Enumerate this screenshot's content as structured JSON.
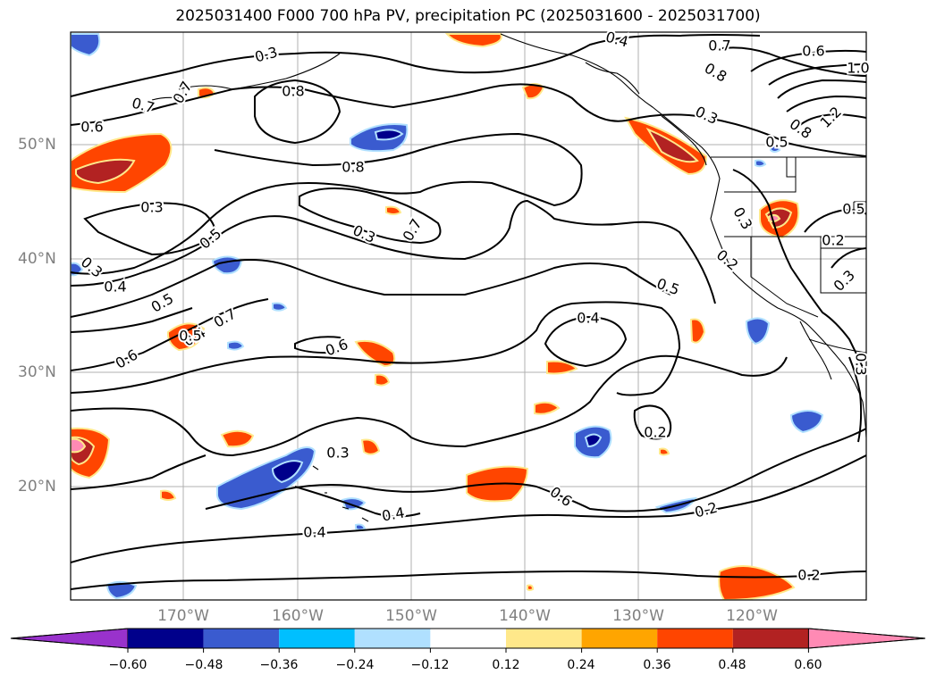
{
  "title": "2025031400 F000 700 hPa PV, precipitation PC (2025031600 - 2025031700)",
  "lat_labels": [
    "50°N",
    "40°N",
    "30°N",
    "20°N"
  ],
  "lon_labels": [
    "170°W",
    "160°W",
    "150°W",
    "140°W",
    "130°W",
    "120°W"
  ],
  "contour_labels": [
    "0.8",
    "0.4",
    "0.8",
    "0.7",
    "0.6",
    "0.7",
    "0.8",
    "0.6",
    "0.7",
    "0.3",
    "0.8",
    "0.5",
    "0.3",
    "1.0",
    "1.2",
    "0.8",
    "0.3",
    "0.5",
    "0.3",
    "0.3",
    "0.7",
    "0.2",
    "0.4",
    "0.5",
    "0.4",
    "0.6",
    "0.7",
    "0.5",
    "0.4",
    "0.6",
    "0.3",
    "0.2",
    "0.3",
    "0.6",
    "0.2",
    "0.4",
    "0.4",
    "0.2",
    "0.3",
    "0.2",
    "0.5",
    "0.5",
    "0.3"
  ],
  "colorbar": {
    "ticks": [
      "−0.60",
      "−0.48",
      "−0.36",
      "−0.24",
      "−0.12",
      "0.12",
      "0.24",
      "0.36",
      "0.48",
      "0.60"
    ],
    "colors": [
      "#9932cc",
      "#00008b",
      "#3a5bcf",
      "#00bfff",
      "#b0e0ff",
      "#ffffff",
      "#ffe88a",
      "#ffa500",
      "#ff4500",
      "#b22222",
      "#ff8ab4"
    ]
  }
}
